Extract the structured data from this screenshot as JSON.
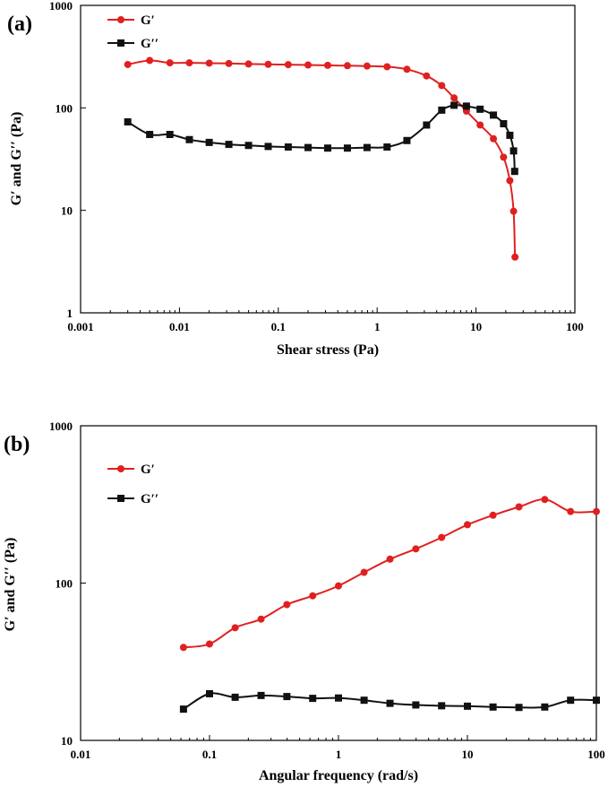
{
  "chart_data": [
    {
      "type": "line",
      "panel_label": "(a)",
      "xlabel": "Shear stress (Pa)",
      "ylabel": "G′ and G′′ (Pa)",
      "xscale": "log",
      "yscale": "log",
      "xlim": [
        0.001,
        100
      ],
      "ylim": [
        1,
        1000
      ],
      "x_tick_labels": [
        "0.001",
        "0.01",
        "0.1",
        "1",
        "10",
        "100"
      ],
      "y_tick_labels": [
        "1",
        "10",
        "100",
        "1000"
      ],
      "legend_position": "top-left",
      "series": [
        {
          "name": "G′",
          "color": "#e02020",
          "marker": "circle",
          "x": [
            0.003,
            0.005,
            0.008,
            0.0126,
            0.02,
            0.0316,
            0.05,
            0.079,
            0.126,
            0.2,
            0.316,
            0.5,
            0.79,
            1.26,
            2.0,
            3.16,
            4.5,
            6.0,
            8.0,
            11.0,
            15.0,
            19.0,
            22.0,
            24.0,
            24.8
          ],
          "y": [
            265,
            290,
            275,
            275,
            273,
            271,
            268,
            266,
            264,
            262,
            260,
            258,
            256,
            252,
            238,
            205,
            165,
            125,
            93,
            68,
            50,
            33,
            19.5,
            9.8,
            3.5
          ]
        },
        {
          "name": "G′′",
          "color": "#111111",
          "marker": "square",
          "x": [
            0.003,
            0.005,
            0.008,
            0.0126,
            0.02,
            0.0316,
            0.05,
            0.079,
            0.126,
            0.2,
            0.316,
            0.5,
            0.79,
            1.26,
            2.0,
            3.16,
            4.5,
            6.0,
            8.0,
            11.0,
            15.0,
            19.0,
            22.0,
            24.0,
            24.6
          ],
          "y": [
            73,
            55,
            55,
            49,
            46,
            44,
            43,
            42,
            41.5,
            41,
            40.5,
            40.5,
            41,
            41.5,
            48,
            68,
            95,
            106,
            104,
            97,
            85,
            70,
            54,
            38,
            24
          ]
        }
      ]
    },
    {
      "type": "line",
      "panel_label": "(b)",
      "xlabel": "Angular frequency (rad/s)",
      "ylabel": "G′ and G′′ (Pa)",
      "xscale": "log",
      "yscale": "log",
      "xlim": [
        0.01,
        100
      ],
      "ylim": [
        10,
        1000
      ],
      "x_tick_labels": [
        "0.01",
        "0.1",
        "1",
        "10",
        "100"
      ],
      "y_tick_labels": [
        "10",
        "100",
        "1000"
      ],
      "legend_position": "top-left",
      "series": [
        {
          "name": "G′",
          "color": "#e02020",
          "marker": "circle",
          "x": [
            0.0628,
            0.1,
            0.158,
            0.251,
            0.398,
            0.631,
            1.0,
            1.58,
            2.51,
            3.98,
            6.31,
            10.0,
            15.8,
            25.1,
            39.8,
            63.1,
            100
          ],
          "y": [
            39,
            41,
            52,
            59,
            73,
            83,
            96,
            117,
            142,
            165,
            195,
            235,
            270,
            305,
            340,
            285,
            285
          ]
        },
        {
          "name": "G′′",
          "color": "#111111",
          "marker": "square",
          "x": [
            0.0628,
            0.1,
            0.158,
            0.251,
            0.398,
            0.631,
            1.0,
            1.58,
            2.51,
            3.98,
            6.31,
            10.0,
            15.8,
            25.1,
            39.8,
            63.1,
            100
          ],
          "y": [
            15.8,
            19.8,
            18.8,
            19.3,
            19.0,
            18.5,
            18.6,
            18.0,
            17.2,
            16.8,
            16.6,
            16.5,
            16.3,
            16.2,
            16.3,
            18.0,
            18.0
          ]
        }
      ]
    }
  ]
}
